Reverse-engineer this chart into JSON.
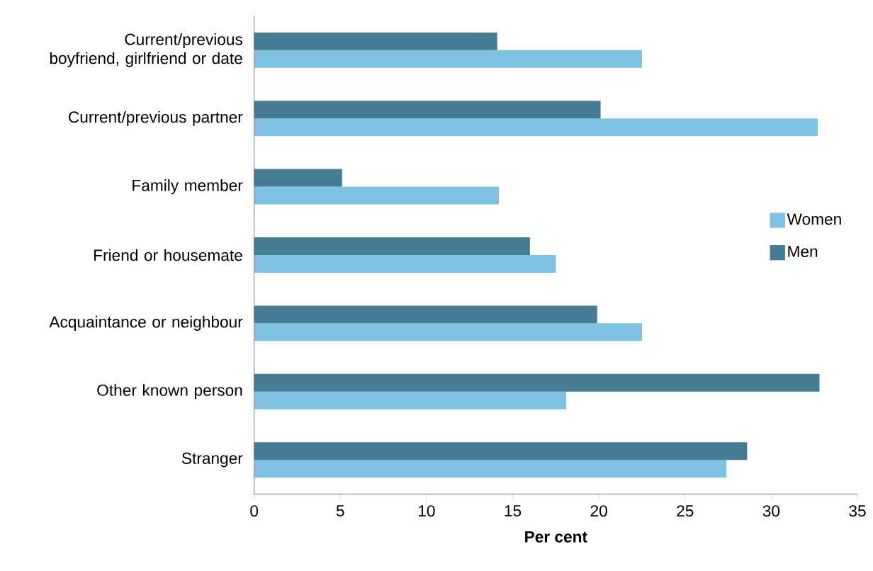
{
  "chart_data": {
    "type": "bar",
    "orientation": "horizontal",
    "xlabel": "Per cent",
    "categories": [
      "Current/previous boyfriend, girlfriend or date",
      "Current/previous partner",
      "Family member",
      "Friend or housemate",
      "Acquaintance or neighbour",
      "Other known person",
      "Stranger"
    ],
    "series": [
      {
        "name": "Women",
        "color": "#7fc1e1",
        "values": [
          22.5,
          32.7,
          14.2,
          17.5,
          22.5,
          18.1,
          27.4
        ]
      },
      {
        "name": "Men",
        "color": "#457b93",
        "values": [
          14.1,
          20.1,
          5.1,
          16.0,
          19.9,
          32.8,
          28.6
        ]
      }
    ],
    "xlim": [
      0,
      35
    ],
    "xticks": [
      0,
      5,
      10,
      15,
      20,
      25,
      30,
      35
    ],
    "grid": false,
    "legend": "right"
  }
}
